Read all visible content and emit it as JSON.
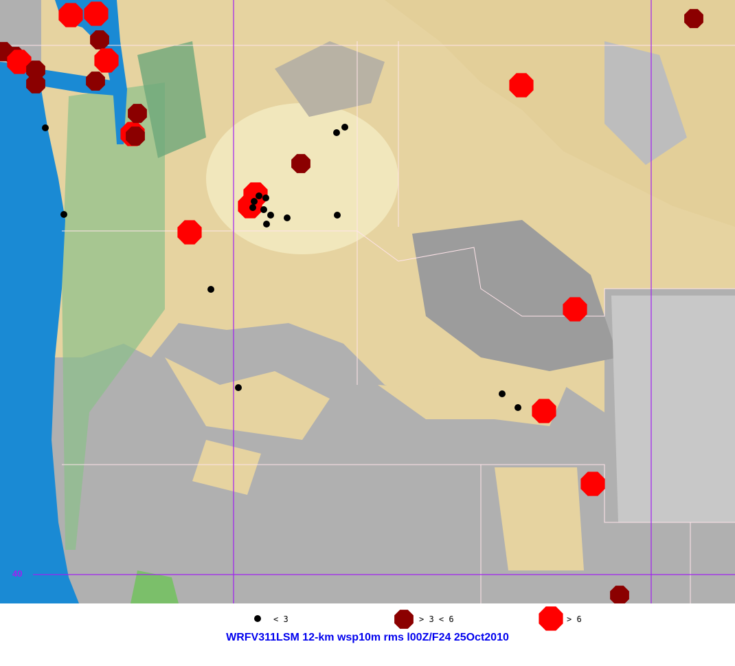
{
  "title": "WRFV311LSM 12-km wsp10m rms l00Z/F24 25Oct2010",
  "latitude_label": "40",
  "legend": [
    {
      "label": "< 3",
      "color": "#000000",
      "icon": "black-dot"
    },
    {
      "label": "> 3 < 6",
      "color": "#8b0000",
      "icon": "dark-red-octagon"
    },
    {
      "label": "> 6",
      "color": "#ff0000",
      "icon": "red-octagon"
    }
  ],
  "colors": {
    "ocean": "#1a8ad4",
    "land": "#e6d3a0",
    "terrain_high": "#a8a8a8",
    "grid": "#a020f0",
    "title": "#0000ee"
  }
}
